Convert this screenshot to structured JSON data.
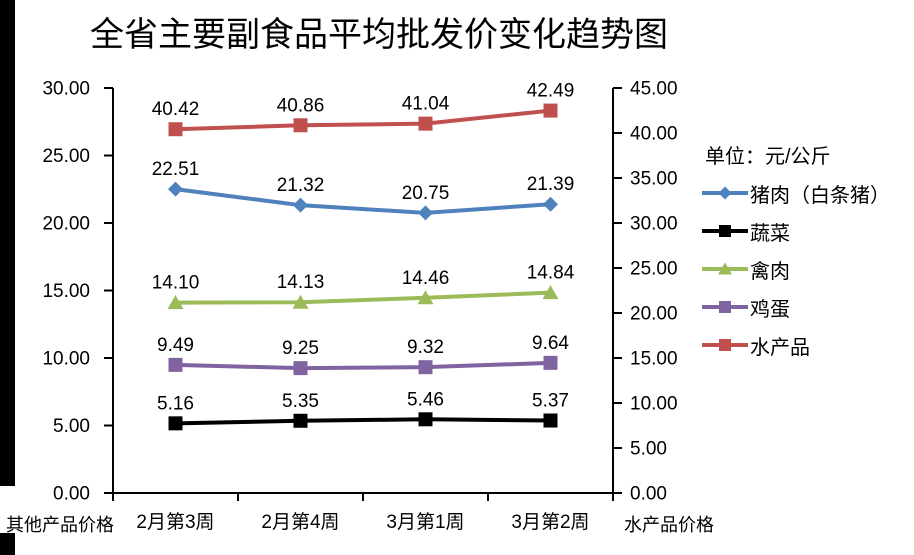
{
  "chart_data": {
    "type": "line",
    "title": "全省主要副食品平均批发价变化趋势图",
    "unit": "单位：元/公斤",
    "categories": [
      "2月第3周",
      "2月第4周",
      "3月第1周",
      "3月第2周"
    ],
    "series": [
      {
        "name": "猪肉（白条猪）",
        "color": "#4F81BD",
        "marker": "diamond",
        "axis": "left",
        "values": [
          22.51,
          21.32,
          20.75,
          21.39
        ]
      },
      {
        "name": "蔬菜",
        "color": "#000000",
        "marker": "square",
        "axis": "left",
        "values": [
          5.16,
          5.35,
          5.46,
          5.37
        ]
      },
      {
        "name": "禽肉",
        "color": "#9BBB59",
        "marker": "triangle",
        "axis": "left",
        "values": [
          14.1,
          14.13,
          14.46,
          14.84
        ]
      },
      {
        "name": "鸡蛋",
        "color": "#8064A2",
        "marker": "square",
        "axis": "left",
        "values": [
          9.49,
          9.25,
          9.32,
          9.64
        ]
      },
      {
        "name": "水产品",
        "color": "#C0504D",
        "marker": "square",
        "axis": "right",
        "values": [
          40.42,
          40.86,
          41.04,
          42.49
        ]
      }
    ],
    "left_axis": {
      "title": "其他产品价格",
      "min": 0,
      "max": 30,
      "step": 5,
      "tick_format": "0.00"
    },
    "right_axis": {
      "title": "水产品价格",
      "min": 0,
      "max": 45,
      "step": 5,
      "tick_format": "0.00"
    },
    "legend_position": "right",
    "grid": false,
    "data_labels": true,
    "axis_color": "#000000"
  }
}
